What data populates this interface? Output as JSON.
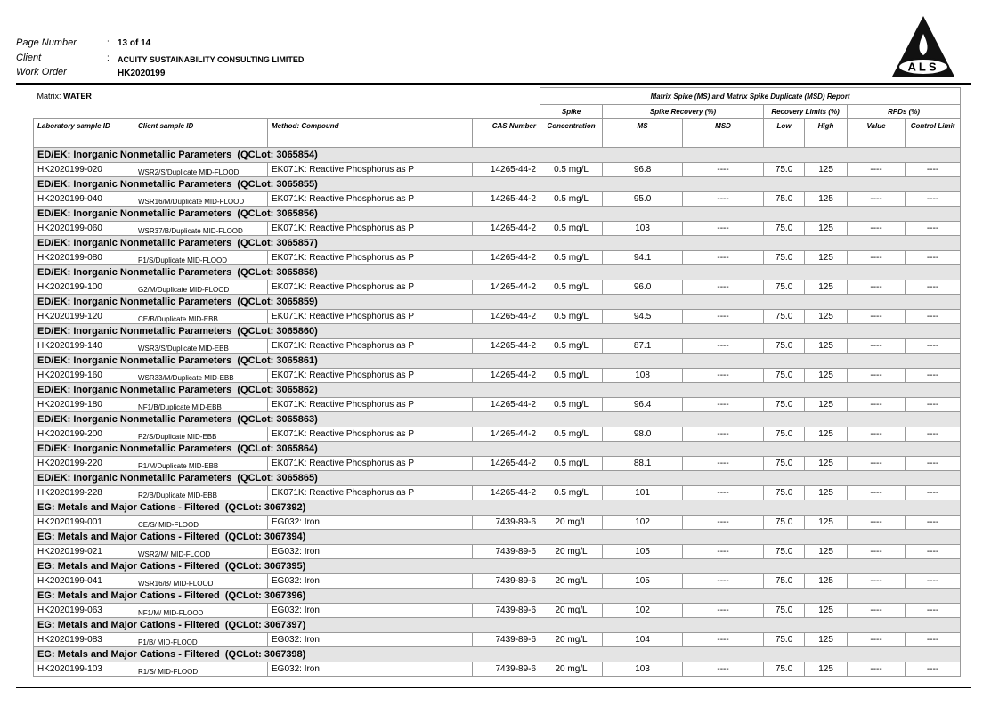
{
  "header": {
    "labels": [
      "Page Number",
      "Client",
      "Work Order"
    ],
    "separator": ":",
    "values": [
      "13 of 14",
      "ACUITY SUSTAINABILITY CONSULTING LIMITED",
      "HK2020199"
    ],
    "logo": "ALS"
  },
  "table": {
    "matrix_label": "Matrix:",
    "matrix": "WATER",
    "report_title": "Matrix Spike (MS) and Matrix Spike Duplicate (MSD) Report",
    "group_headers": [
      "Spike",
      "Spike Recovery (%)",
      "Recovery Limits (%)",
      "RPDs (%)"
    ],
    "columns": [
      "Laboratory sample ID",
      "Client sample ID",
      "Method: Compound",
      "CAS Number",
      "Concentration",
      "MS",
      "MSD",
      "Low",
      "High",
      "Value",
      "Control Limit"
    ],
    "groups": [
      {
        "title": "ED/EK: Inorganic Nonmetallic Parameters  (QCLot: 3065854)",
        "row": [
          "HK2020199-020",
          "WSR2/S/Duplicate MID-FLOOD",
          "EK071K: Reactive Phosphorus as P",
          "14265-44-2",
          "0.5 mg/L",
          "96.8",
          "----",
          "75.0",
          "125",
          "----",
          "----"
        ]
      },
      {
        "title": "ED/EK: Inorganic Nonmetallic Parameters  (QCLot: 3065855)",
        "row": [
          "HK2020199-040",
          "WSR16/M/Duplicate MID-FLOOD",
          "EK071K: Reactive Phosphorus as P",
          "14265-44-2",
          "0.5 mg/L",
          "95.0",
          "----",
          "75.0",
          "125",
          "----",
          "----"
        ]
      },
      {
        "title": "ED/EK: Inorganic Nonmetallic Parameters  (QCLot: 3065856)",
        "row": [
          "HK2020199-060",
          "WSR37/B/Duplicate MID-FLOOD",
          "EK071K: Reactive Phosphorus as P",
          "14265-44-2",
          "0.5 mg/L",
          "103",
          "----",
          "75.0",
          "125",
          "----",
          "----"
        ]
      },
      {
        "title": "ED/EK: Inorganic Nonmetallic Parameters  (QCLot: 3065857)",
        "row": [
          "HK2020199-080",
          "P1/S/Duplicate MID-FLOOD",
          "EK071K: Reactive Phosphorus as P",
          "14265-44-2",
          "0.5 mg/L",
          "94.1",
          "----",
          "75.0",
          "125",
          "----",
          "----"
        ]
      },
      {
        "title": "ED/EK: Inorganic Nonmetallic Parameters  (QCLot: 3065858)",
        "row": [
          "HK2020199-100",
          "G2/M/Duplicate MID-FLOOD",
          "EK071K: Reactive Phosphorus as P",
          "14265-44-2",
          "0.5 mg/L",
          "96.0",
          "----",
          "75.0",
          "125",
          "----",
          "----"
        ]
      },
      {
        "title": "ED/EK: Inorganic Nonmetallic Parameters  (QCLot: 3065859)",
        "row": [
          "HK2020199-120",
          "CE/B/Duplicate MID-EBB",
          "EK071K: Reactive Phosphorus as P",
          "14265-44-2",
          "0.5 mg/L",
          "94.5",
          "----",
          "75.0",
          "125",
          "----",
          "----"
        ]
      },
      {
        "title": "ED/EK: Inorganic Nonmetallic Parameters  (QCLot: 3065860)",
        "row": [
          "HK2020199-140",
          "WSR3/S/Duplicate MID-EBB",
          "EK071K: Reactive Phosphorus as P",
          "14265-44-2",
          "0.5 mg/L",
          "87.1",
          "----",
          "75.0",
          "125",
          "----",
          "----"
        ]
      },
      {
        "title": "ED/EK: Inorganic Nonmetallic Parameters  (QCLot: 3065861)",
        "row": [
          "HK2020199-160",
          "WSR33/M/Duplicate MID-EBB",
          "EK071K: Reactive Phosphorus as P",
          "14265-44-2",
          "0.5 mg/L",
          "108",
          "----",
          "75.0",
          "125",
          "----",
          "----"
        ]
      },
      {
        "title": "ED/EK: Inorganic Nonmetallic Parameters  (QCLot: 3065862)",
        "row": [
          "HK2020199-180",
          "NF1/B/Duplicate MID-EBB",
          "EK071K: Reactive Phosphorus as P",
          "14265-44-2",
          "0.5 mg/L",
          "96.4",
          "----",
          "75.0",
          "125",
          "----",
          "----"
        ]
      },
      {
        "title": "ED/EK: Inorganic Nonmetallic Parameters  (QCLot: 3065863)",
        "row": [
          "HK2020199-200",
          "P2/S/Duplicate MID-EBB",
          "EK071K: Reactive Phosphorus as P",
          "14265-44-2",
          "0.5 mg/L",
          "98.0",
          "----",
          "75.0",
          "125",
          "----",
          "----"
        ]
      },
      {
        "title": "ED/EK: Inorganic Nonmetallic Parameters  (QCLot: 3065864)",
        "row": [
          "HK2020199-220",
          "R1/M/Duplicate MID-EBB",
          "EK071K: Reactive Phosphorus as P",
          "14265-44-2",
          "0.5 mg/L",
          "88.1",
          "----",
          "75.0",
          "125",
          "----",
          "----"
        ]
      },
      {
        "title": "ED/EK: Inorganic Nonmetallic Parameters  (QCLot: 3065865)",
        "row": [
          "HK2020199-228",
          "R2/B/Duplicate MID-EBB",
          "EK071K: Reactive Phosphorus as P",
          "14265-44-2",
          "0.5 mg/L",
          "101",
          "----",
          "75.0",
          "125",
          "----",
          "----"
        ]
      },
      {
        "title": "EG: Metals and Major Cations - Filtered  (QCLot: 3067392)",
        "row": [
          "HK2020199-001",
          "CE/S/ MID-FLOOD",
          "EG032: Iron",
          "7439-89-6",
          "20 mg/L",
          "102",
          "----",
          "75.0",
          "125",
          "----",
          "----"
        ]
      },
      {
        "title": "EG: Metals and Major Cations - Filtered  (QCLot: 3067394)",
        "row": [
          "HK2020199-021",
          "WSR2/M/ MID-FLOOD",
          "EG032: Iron",
          "7439-89-6",
          "20 mg/L",
          "105",
          "----",
          "75.0",
          "125",
          "----",
          "----"
        ]
      },
      {
        "title": "EG: Metals and Major Cations - Filtered  (QCLot: 3067395)",
        "row": [
          "HK2020199-041",
          "WSR16/B/ MID-FLOOD",
          "EG032: Iron",
          "7439-89-6",
          "20 mg/L",
          "105",
          "----",
          "75.0",
          "125",
          "----",
          "----"
        ]
      },
      {
        "title": "EG: Metals and Major Cations - Filtered  (QCLot: 3067396)",
        "row": [
          "HK2020199-063",
          "NF1/M/ MID-FLOOD",
          "EG032: Iron",
          "7439-89-6",
          "20 mg/L",
          "102",
          "----",
          "75.0",
          "125",
          "----",
          "----"
        ]
      },
      {
        "title": "EG: Metals and Major Cations - Filtered  (QCLot: 3067397)",
        "row": [
          "HK2020199-083",
          "P1/B/ MID-FLOOD",
          "EG032: Iron",
          "7439-89-6",
          "20 mg/L",
          "104",
          "----",
          "75.0",
          "125",
          "----",
          "----"
        ]
      },
      {
        "title": "EG: Metals and Major Cations - Filtered  (QCLot: 3067398)",
        "row": [
          "HK2020199-103",
          "R1/S/ MID-FLOOD",
          "EG032: Iron",
          "7439-89-6",
          "20 mg/L",
          "103",
          "----",
          "75.0",
          "125",
          "----",
          "----"
        ]
      }
    ]
  }
}
